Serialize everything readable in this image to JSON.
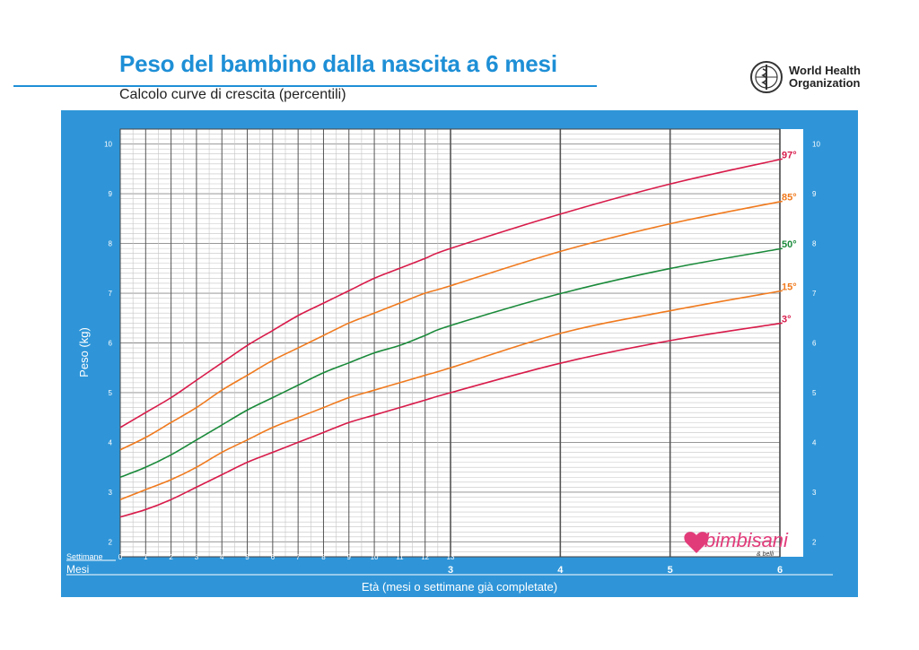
{
  "header": {
    "title": "Peso del bambino dalla nascita a 6 mesi",
    "subtitle": "Calcolo curve di crescita (percentili)",
    "who_line1": "World Health",
    "who_line2": "Organization"
  },
  "footer": {
    "weeks_label": "Settimane",
    "months_label": "Mesi",
    "xlabel": "Età (mesi o settimane già completate)"
  },
  "watermark": {
    "text": "bimbisani",
    "small": "& belli"
  },
  "colors": {
    "panel": "#2f95d8",
    "title": "#1e8fd6",
    "p3": "#d81b4a",
    "p15": "#f07a1e",
    "p50": "#1a8a3a",
    "p85": "#f07a1e",
    "p97": "#d81b4a"
  },
  "chart_data": {
    "type": "line",
    "title": "Peso del bambino dalla nascita a 6 mesi",
    "ylabel": "Peso (kg)",
    "xlabel": "Età (mesi o settimane già completate)",
    "ylim": [
      1.7,
      10.3
    ],
    "y_ticks": [
      2,
      3,
      4,
      5,
      6,
      7,
      8,
      9,
      10
    ],
    "week_ticks": [
      0,
      1,
      2,
      3,
      4,
      5,
      6,
      7,
      8,
      9,
      10,
      11,
      12,
      13
    ],
    "month_ticks": [
      3,
      4,
      5,
      6
    ],
    "x_weeks": [
      0,
      1,
      2,
      3,
      4,
      5,
      6,
      7,
      8,
      9,
      10,
      11,
      12,
      13,
      17.4,
      21.7,
      26.1
    ],
    "series": [
      {
        "name": "97°",
        "color": "#d81b4a",
        "values": [
          4.3,
          4.6,
          4.9,
          5.25,
          5.6,
          5.95,
          6.25,
          6.55,
          6.8,
          7.05,
          7.3,
          7.5,
          7.7,
          7.9,
          8.6,
          9.2,
          9.7
        ]
      },
      {
        "name": "85°",
        "color": "#f07a1e",
        "values": [
          3.85,
          4.1,
          4.4,
          4.7,
          5.05,
          5.35,
          5.65,
          5.9,
          6.15,
          6.4,
          6.6,
          6.8,
          7.0,
          7.15,
          7.85,
          8.4,
          8.85
        ]
      },
      {
        "name": "50°",
        "color": "#1a8a3a",
        "values": [
          3.3,
          3.5,
          3.75,
          4.05,
          4.35,
          4.65,
          4.9,
          5.15,
          5.4,
          5.6,
          5.8,
          5.95,
          6.15,
          6.35,
          7.0,
          7.5,
          7.9
        ]
      },
      {
        "name": "15°",
        "color": "#f07a1e",
        "values": [
          2.85,
          3.05,
          3.25,
          3.5,
          3.8,
          4.05,
          4.3,
          4.5,
          4.7,
          4.9,
          5.05,
          5.2,
          5.35,
          5.5,
          6.2,
          6.65,
          7.05
        ]
      },
      {
        "name": "3°",
        "color": "#d81b4a",
        "values": [
          2.5,
          2.65,
          2.85,
          3.1,
          3.35,
          3.6,
          3.8,
          4.0,
          4.2,
          4.4,
          4.55,
          4.7,
          4.85,
          5.0,
          5.6,
          6.05,
          6.4
        ]
      }
    ]
  }
}
